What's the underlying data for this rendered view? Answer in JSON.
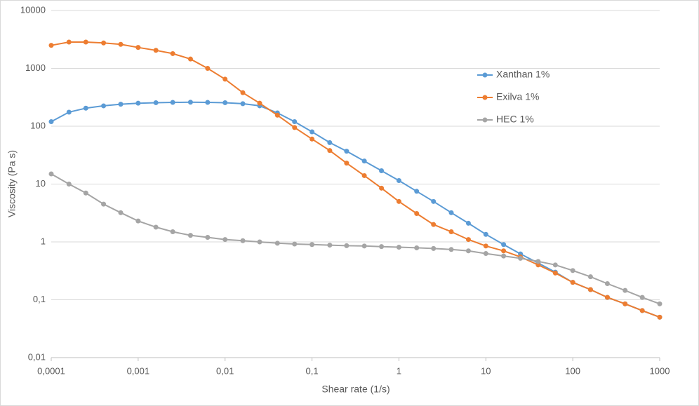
{
  "chart_data": {
    "type": "line",
    "x_label": "Shear rate (1/s)",
    "y_label": "Viscosity (Pa s)",
    "xscale": "log",
    "yscale": "log",
    "grid": true,
    "legend_position": "right",
    "xlim": [
      0.0001,
      1000
    ],
    "ylim": [
      0.01,
      10000
    ],
    "xticks": [
      {
        "value": 0.0001,
        "label": "0,0001"
      },
      {
        "value": 0.001,
        "label": "0,001"
      },
      {
        "value": 0.01,
        "label": "0,01"
      },
      {
        "value": 0.1,
        "label": "0,1"
      },
      1,
      10,
      100,
      1000
    ],
    "yticks": [
      {
        "value": 0.01,
        "label": "0,01"
      },
      {
        "value": 0.1,
        "label": "0,1"
      },
      1,
      10,
      100,
      1000,
      10000
    ],
    "x": [
      0.0001,
      0.00016,
      0.00025,
      0.0004,
      0.00063,
      0.001,
      0.0016,
      0.0025,
      0.004,
      0.0063,
      0.01,
      0.016,
      0.025,
      0.04,
      0.063,
      0.1,
      0.16,
      0.25,
      0.4,
      0.63,
      1,
      1.6,
      2.5,
      4,
      6.3,
      10,
      16,
      25,
      40,
      63,
      100,
      160,
      250,
      400,
      630,
      1000
    ],
    "series": [
      {
        "name": "Xanthan 1%",
        "color": "#5b9bd5",
        "values": [
          120,
          175,
          205,
          225,
          240,
          250,
          255,
          258,
          260,
          258,
          255,
          245,
          225,
          170,
          120,
          80,
          52,
          37,
          25,
          17,
          11.5,
          7.5,
          5,
          3.2,
          2.1,
          1.35,
          0.9,
          0.62,
          0.43,
          0.3,
          0.2,
          0.15,
          0.11,
          0.085,
          0.065,
          0.05
        ]
      },
      {
        "name": "Exilva 1%",
        "color": "#ed7d31",
        "values": [
          2500,
          2850,
          2850,
          2750,
          2600,
          2300,
          2050,
          1800,
          1450,
          1000,
          650,
          380,
          250,
          155,
          95,
          60,
          38,
          23,
          14,
          8.5,
          5,
          3.1,
          2,
          1.5,
          1.1,
          0.85,
          0.7,
          0.55,
          0.4,
          0.29,
          0.2,
          0.15,
          0.11,
          0.085,
          0.065,
          0.05
        ]
      },
      {
        "name": "HEC 1%",
        "color": "#a5a5a5",
        "values": [
          15,
          10,
          7,
          4.5,
          3.2,
          2.3,
          1.8,
          1.5,
          1.3,
          1.2,
          1.1,
          1.05,
          1.0,
          0.95,
          0.92,
          0.9,
          0.88,
          0.86,
          0.85,
          0.83,
          0.81,
          0.79,
          0.77,
          0.74,
          0.7,
          0.63,
          0.57,
          0.52,
          0.46,
          0.4,
          0.32,
          0.25,
          0.19,
          0.145,
          0.11,
          0.085
        ]
      }
    ]
  }
}
